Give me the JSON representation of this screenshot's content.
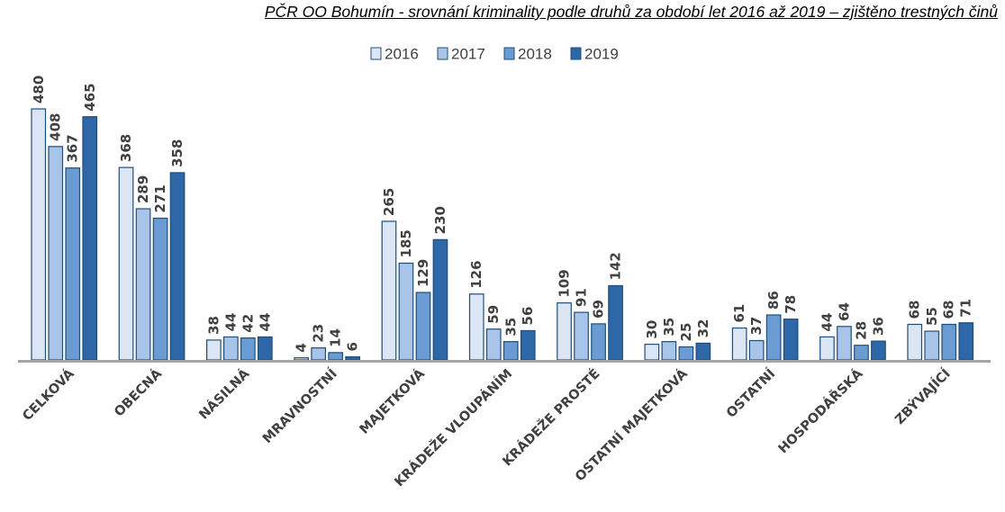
{
  "chart_data": {
    "type": "bar",
    "title": "PČR OO Bohumín - srovnání kriminality podle druhů za období let 2016 až 2019 – zjištěno trestných činů",
    "categories": [
      "CELKOVÁ",
      "OBECNÁ",
      "NÁSILNÁ",
      "MRAVNOSTNÍ",
      "MAJETKOVÁ",
      "KRÁDEŽE VLOUPÁNÍM",
      "KRÁDEŽE PROSTÉ",
      "OSTATNÍ MAJETKOVÁ",
      "OSTATNÍ",
      "HOSPODÁŘSKÁ",
      "ZBÝVAJÍCÍ"
    ],
    "series": [
      {
        "name": "2016",
        "color": "#dbe5f3",
        "values": [
          480,
          368,
          38,
          4,
          265,
          126,
          109,
          30,
          61,
          44,
          68
        ]
      },
      {
        "name": "2017",
        "color": "#a8c4e8",
        "values": [
          408,
          289,
          44,
          23,
          185,
          59,
          91,
          35,
          37,
          64,
          55
        ]
      },
      {
        "name": "2018",
        "color": "#6b9bd3",
        "values": [
          367,
          271,
          42,
          14,
          129,
          35,
          69,
          25,
          86,
          28,
          68
        ]
      },
      {
        "name": "2019",
        "color": "#2e67a8",
        "values": [
          465,
          358,
          44,
          6,
          230,
          56,
          142,
          32,
          78,
          36,
          71
        ]
      }
    ],
    "ylim": [
      0,
      480
    ],
    "grid": false,
    "legend_position": "top-center",
    "bar_stroke_color": "#1f4e79",
    "axis_color": "#a6a6a6"
  }
}
